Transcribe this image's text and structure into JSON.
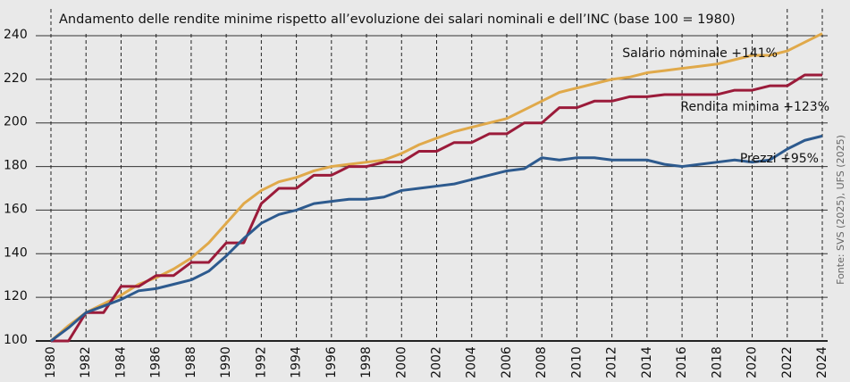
{
  "chart_data": {
    "type": "line",
    "title": "Andamento delle rendite minime rispetto all’evoluzione dei salari nominali e dell’INC (base 100 = 1980)",
    "source": "Fonte: SVS (2025), UFS (2025)",
    "x": [
      1980,
      1981,
      1982,
      1983,
      1984,
      1985,
      1986,
      1987,
      1988,
      1989,
      1990,
      1991,
      1992,
      1993,
      1994,
      1995,
      1996,
      1997,
      1998,
      1999,
      2000,
      2001,
      2002,
      2003,
      2004,
      2005,
      2006,
      2007,
      2008,
      2009,
      2010,
      2011,
      2012,
      2013,
      2014,
      2015,
      2016,
      2017,
      2018,
      2019,
      2020,
      2021,
      2022,
      2023,
      2024
    ],
    "xlim": [
      1980,
      2024
    ],
    "xticks": [
      1980,
      1982,
      1984,
      1986,
      1988,
      1990,
      1992,
      1994,
      1996,
      1998,
      2000,
      2002,
      2004,
      2006,
      2008,
      2010,
      2012,
      2014,
      2016,
      2018,
      2020,
      2022,
      2024
    ],
    "ylim": [
      100,
      240
    ],
    "yticks": [
      100,
      120,
      140,
      160,
      180,
      200,
      220,
      240
    ],
    "grid": true,
    "series": [
      {
        "name": "Salario nominale +141%",
        "color": "#e0a94a",
        "values": [
          100,
          107,
          113,
          117,
          121,
          126,
          129,
          133,
          138,
          145,
          154,
          163,
          169,
          173,
          175,
          178,
          180,
          181,
          182,
          183,
          186,
          190,
          193,
          196,
          198,
          200,
          202,
          206,
          210,
          214,
          216,
          218,
          220,
          221,
          223,
          224,
          225,
          226,
          227,
          229,
          231,
          231,
          233,
          237,
          241
        ]
      },
      {
        "name": "Rendita minima +123%",
        "color": "#9b1b3a",
        "values": [
          100,
          100,
          113,
          113,
          125,
          125,
          130,
          130,
          136,
          136,
          145,
          145,
          163,
          170,
          170,
          176,
          176,
          180,
          180,
          182,
          182,
          187,
          187,
          191,
          191,
          195,
          195,
          200,
          200,
          207,
          207,
          210,
          210,
          212,
          212,
          213,
          213,
          213,
          213,
          215,
          215,
          217,
          217,
          222,
          222
        ]
      },
      {
        "name": "Prezzi +95%",
        "color": "#2d5a8e",
        "values": [
          100,
          106,
          113,
          116,
          119,
          123,
          124,
          126,
          128,
          132,
          139,
          147,
          154,
          158,
          160,
          163,
          164,
          165,
          165,
          166,
          169,
          170,
          171,
          172,
          174,
          176,
          178,
          179,
          184,
          183,
          184,
          184,
          183,
          183,
          183,
          181,
          180,
          181,
          182,
          183,
          182,
          183,
          188,
          192,
          194
        ]
      }
    ]
  }
}
